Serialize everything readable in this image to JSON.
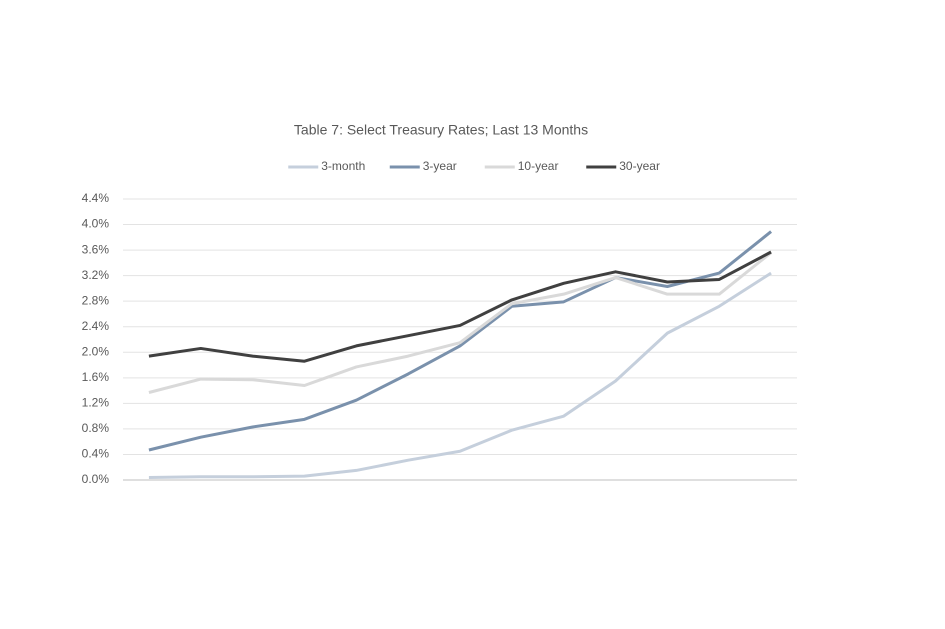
{
  "chart_data": {
    "type": "line",
    "title": "Table 7: Select Treasury Rates; Last 13 Months",
    "categories": [
      null,
      null,
      null,
      null,
      null,
      null,
      null,
      null,
      null,
      null,
      null,
      null,
      null
    ],
    "series": [
      {
        "name": "3-month",
        "color": "#c5cfdc",
        "values": [
          0.04,
          0.05,
          0.05,
          0.06,
          0.15,
          0.31,
          0.45,
          0.78,
          1.0,
          1.55,
          2.3,
          2.72,
          3.24
        ]
      },
      {
        "name": "3-year",
        "color": "#7a91ac",
        "values": [
          0.47,
          0.67,
          0.83,
          0.95,
          1.25,
          1.66,
          2.1,
          2.72,
          2.79,
          3.17,
          3.03,
          3.24,
          3.89
        ]
      },
      {
        "name": "10-year",
        "color": "#d9d9d9",
        "values": [
          1.37,
          1.58,
          1.57,
          1.48,
          1.77,
          1.94,
          2.15,
          2.76,
          2.91,
          3.17,
          2.91,
          2.91,
          3.56
        ]
      },
      {
        "name": "30-year",
        "color": "#404040",
        "values": [
          1.94,
          2.06,
          1.94,
          1.86,
          2.1,
          2.26,
          2.42,
          2.82,
          3.08,
          3.26,
          3.1,
          3.14,
          3.57
        ]
      }
    ],
    "ylim": [
      0,
      4.4
    ],
    "yticks": [
      {
        "value": 0,
        "label": "0.0%"
      },
      {
        "value": 0.4,
        "label": "0.4%"
      },
      {
        "value": 0.8,
        "label": "0.8%"
      },
      {
        "value": 1.2,
        "label": "1.2%"
      },
      {
        "value": 1.6,
        "label": "1.6%"
      },
      {
        "value": 2.0,
        "label": "2.0%"
      },
      {
        "value": 2.4,
        "label": "2.4%"
      },
      {
        "value": 2.8,
        "label": "2.8%"
      },
      {
        "value": 3.2,
        "label": "3.2%"
      },
      {
        "value": 3.6,
        "label": "3.6%"
      },
      {
        "value": 4.0,
        "label": "4.0%"
      },
      {
        "value": 4.4,
        "label": "4.4%"
      }
    ],
    "grid": true,
    "legend": "top"
  }
}
